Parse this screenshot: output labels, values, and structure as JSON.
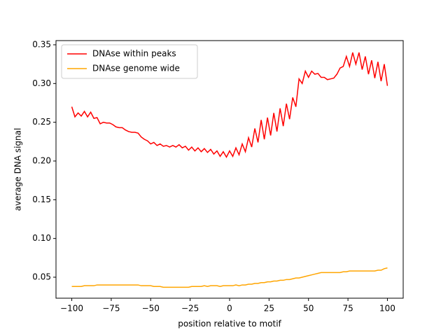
{
  "chart_data": {
    "type": "line",
    "xlabel": "position relative to motif",
    "ylabel": "average DNA signal",
    "x": [
      -100,
      -98,
      -96,
      -94,
      -92,
      -90,
      -88,
      -86,
      -84,
      -82,
      -80,
      -78,
      -76,
      -74,
      -72,
      -70,
      -68,
      -66,
      -64,
      -62,
      -60,
      -58,
      -56,
      -54,
      -52,
      -50,
      -48,
      -46,
      -44,
      -42,
      -40,
      -38,
      -36,
      -34,
      -32,
      -30,
      -28,
      -26,
      -24,
      -22,
      -20,
      -18,
      -16,
      -14,
      -12,
      -10,
      -8,
      -6,
      -4,
      -2,
      0,
      2,
      4,
      6,
      8,
      10,
      12,
      14,
      16,
      18,
      20,
      22,
      24,
      26,
      28,
      30,
      32,
      34,
      36,
      38,
      40,
      42,
      44,
      46,
      48,
      50,
      52,
      54,
      56,
      58,
      60,
      62,
      64,
      66,
      68,
      70,
      72,
      74,
      76,
      78,
      80,
      82,
      84,
      86,
      88,
      90,
      92,
      94,
      96,
      98,
      100
    ],
    "series": [
      {
        "name": "DNAse within peaks",
        "color": "#ff0000",
        "values": [
          0.27,
          0.257,
          0.262,
          0.258,
          0.264,
          0.257,
          0.263,
          0.255,
          0.256,
          0.248,
          0.25,
          0.249,
          0.249,
          0.247,
          0.244,
          0.243,
          0.243,
          0.24,
          0.238,
          0.237,
          0.237,
          0.236,
          0.231,
          0.228,
          0.226,
          0.222,
          0.224,
          0.22,
          0.222,
          0.219,
          0.22,
          0.218,
          0.22,
          0.218,
          0.221,
          0.217,
          0.219,
          0.214,
          0.218,
          0.213,
          0.217,
          0.212,
          0.216,
          0.211,
          0.215,
          0.209,
          0.213,
          0.206,
          0.212,
          0.205,
          0.213,
          0.206,
          0.217,
          0.208,
          0.222,
          0.212,
          0.23,
          0.218,
          0.242,
          0.224,
          0.253,
          0.228,
          0.256,
          0.233,
          0.262,
          0.238,
          0.268,
          0.245,
          0.274,
          0.254,
          0.282,
          0.27,
          0.306,
          0.3,
          0.316,
          0.308,
          0.316,
          0.312,
          0.313,
          0.308,
          0.308,
          0.305,
          0.306,
          0.307,
          0.312,
          0.32,
          0.322,
          0.335,
          0.322,
          0.34,
          0.325,
          0.34,
          0.318,
          0.335,
          0.312,
          0.33,
          0.307,
          0.328,
          0.303,
          0.325,
          0.297
        ]
      },
      {
        "name": "DNAse genome wide",
        "color": "#ffa500",
        "values": [
          0.038,
          0.038,
          0.038,
          0.038,
          0.039,
          0.039,
          0.039,
          0.039,
          0.04,
          0.04,
          0.04,
          0.04,
          0.04,
          0.04,
          0.04,
          0.04,
          0.04,
          0.04,
          0.04,
          0.04,
          0.04,
          0.04,
          0.039,
          0.039,
          0.039,
          0.039,
          0.038,
          0.038,
          0.038,
          0.037,
          0.037,
          0.037,
          0.037,
          0.037,
          0.037,
          0.037,
          0.037,
          0.037,
          0.038,
          0.038,
          0.038,
          0.038,
          0.039,
          0.038,
          0.039,
          0.039,
          0.039,
          0.038,
          0.039,
          0.039,
          0.039,
          0.039,
          0.04,
          0.039,
          0.04,
          0.04,
          0.041,
          0.041,
          0.042,
          0.042,
          0.043,
          0.043,
          0.044,
          0.044,
          0.045,
          0.045,
          0.046,
          0.046,
          0.047,
          0.047,
          0.048,
          0.049,
          0.049,
          0.05,
          0.051,
          0.052,
          0.053,
          0.054,
          0.055,
          0.056,
          0.056,
          0.056,
          0.056,
          0.056,
          0.056,
          0.056,
          0.057,
          0.057,
          0.058,
          0.058,
          0.058,
          0.058,
          0.058,
          0.058,
          0.058,
          0.058,
          0.058,
          0.059,
          0.059,
          0.061,
          0.062
        ]
      }
    ],
    "xlim": [
      -110,
      110
    ],
    "xticks": [
      {
        "value": -100,
        "label": "−100"
      },
      {
        "value": -75,
        "label": "−75"
      },
      {
        "value": -50,
        "label": "−50"
      },
      {
        "value": -25,
        "label": "−25"
      },
      0,
      25,
      50,
      75,
      100
    ],
    "ylim": [
      0.0229,
      0.3554
    ],
    "yticks": [
      0.05,
      {
        "value": 0.1,
        "label": "0.10"
      },
      0.15,
      {
        "value": 0.2,
        "label": "0.20"
      },
      0.25,
      {
        "value": 0.3,
        "label": "0.30"
      },
      0.35
    ],
    "legend": "upper left"
  }
}
